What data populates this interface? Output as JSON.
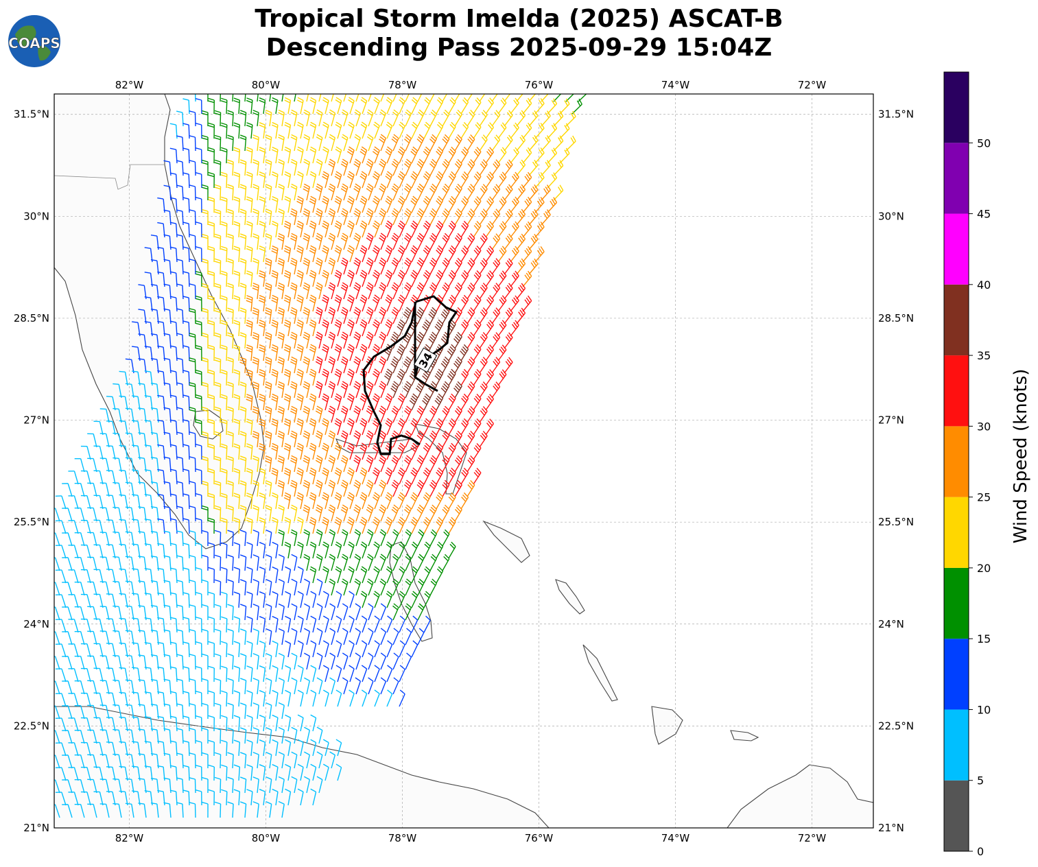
{
  "title": {
    "line1": "Tropical Storm Imelda (2025) ASCAT-B",
    "line2": "Descending Pass 2025-09-29 15:04Z"
  },
  "logo": {
    "text": "COAPS",
    "icon": "globe-logo-icon"
  },
  "map": {
    "lon_ticks": [
      "82°W",
      "80°W",
      "78°W",
      "76°W",
      "74°W",
      "72°W"
    ],
    "lat_ticks": [
      "31.5°N",
      "30°N",
      "28.5°N",
      "27°N",
      "25.5°N",
      "24°N",
      "22.5°N",
      "21°N"
    ],
    "lon_range": [
      -83.1,
      -71.1
    ],
    "lat_range": [
      21.0,
      31.8
    ],
    "grid": true,
    "contour_label": "34"
  },
  "colorbar": {
    "label": "Wind Speed (knots)",
    "ticks": [
      "0",
      "5",
      "10",
      "15",
      "20",
      "25",
      "30",
      "35",
      "40",
      "45",
      "50"
    ],
    "bins": [
      {
        "from": 0,
        "to": 5,
        "color": "#555555"
      },
      {
        "from": 5,
        "to": 10,
        "color": "#00bfff"
      },
      {
        "from": 10,
        "to": 15,
        "color": "#0040ff"
      },
      {
        "from": 15,
        "to": 20,
        "color": "#009000"
      },
      {
        "from": 20,
        "to": 25,
        "color": "#ffd700"
      },
      {
        "from": 25,
        "to": 30,
        "color": "#ff8c00"
      },
      {
        "from": 30,
        "to": 35,
        "color": "#ff1010"
      },
      {
        "from": 35,
        "to": 40,
        "color": "#803020"
      },
      {
        "from": 40,
        "to": 45,
        "color": "#ff00ff"
      },
      {
        "from": 45,
        "to": 50,
        "color": "#8000b0"
      },
      {
        "from": 50,
        "to": 55,
        "color": "#2a0060"
      }
    ]
  }
}
